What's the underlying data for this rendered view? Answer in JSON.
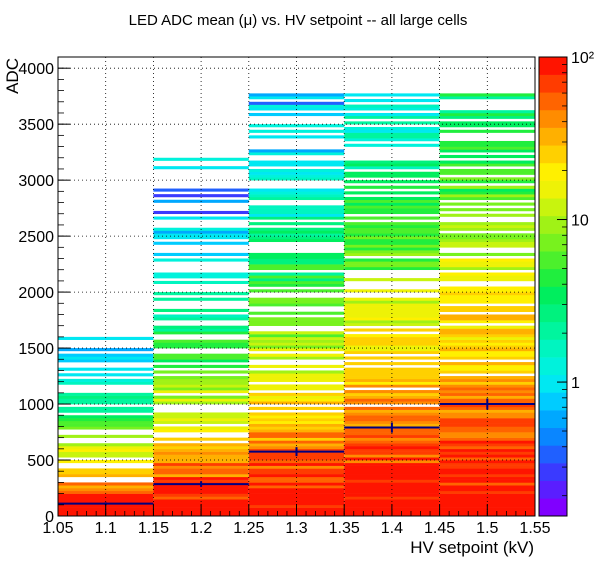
{
  "chart_data": {
    "type": "heatmap",
    "title": "LED ADC mean (μ) vs. HV setpoint -- all large cells",
    "xlabel": "HV setpoint (kV)",
    "ylabel": "ADC",
    "xlim": [
      1.05,
      1.55
    ],
    "ylim": [
      0,
      4100
    ],
    "x_ticks": [
      "1.05",
      "1.1",
      "1.15",
      "1.2",
      "1.25",
      "1.3",
      "1.35",
      "1.4",
      "1.45",
      "1.5",
      "1.55"
    ],
    "y_ticks": [
      "0",
      "500",
      "1000",
      "1500",
      "2000",
      "2500",
      "3000",
      "3500",
      "4000"
    ],
    "grid": true,
    "color_scale": "log",
    "z_range": [
      0.15,
      100
    ],
    "z_ticks": [
      "1",
      "10",
      "10²"
    ],
    "palette": [
      "#8000ff",
      "#5a1eff",
      "#3a3aff",
      "#2060ff",
      "#0a86ff",
      "#00a8ff",
      "#00ccff",
      "#00e8f2",
      "#00f2dc",
      "#00f5c0",
      "#00f59e",
      "#00f27e",
      "#00ee5e",
      "#20ee3e",
      "#4cf02c",
      "#78f21e",
      "#a0f216",
      "#c8f40e",
      "#eef206",
      "#fff000",
      "#ffd000",
      "#ffb000",
      "#ff8c00",
      "#ff6400",
      "#ff3c00",
      "#ff1400"
    ],
    "x_bins": [
      {
        "center": 1.1,
        "low": 1.05,
        "high": 1.15,
        "max_y": 1640,
        "mean": 110,
        "err": 12
      },
      {
        "center": 1.2,
        "low": 1.15,
        "high": 1.25,
        "max_y": 3340,
        "mean": 285,
        "err": 25
      },
      {
        "center": 1.3,
        "low": 1.25,
        "high": 1.35,
        "max_y": 3770,
        "mean": 575,
        "err": 40
      },
      {
        "center": 1.4,
        "low": 1.35,
        "high": 1.45,
        "max_y": 3760,
        "mean": 790,
        "err": 45
      },
      {
        "center": 1.5,
        "low": 1.45,
        "high": 1.55,
        "max_y": 3800,
        "mean": 1000,
        "err": 50
      }
    ],
    "mean_color": "#000080"
  }
}
